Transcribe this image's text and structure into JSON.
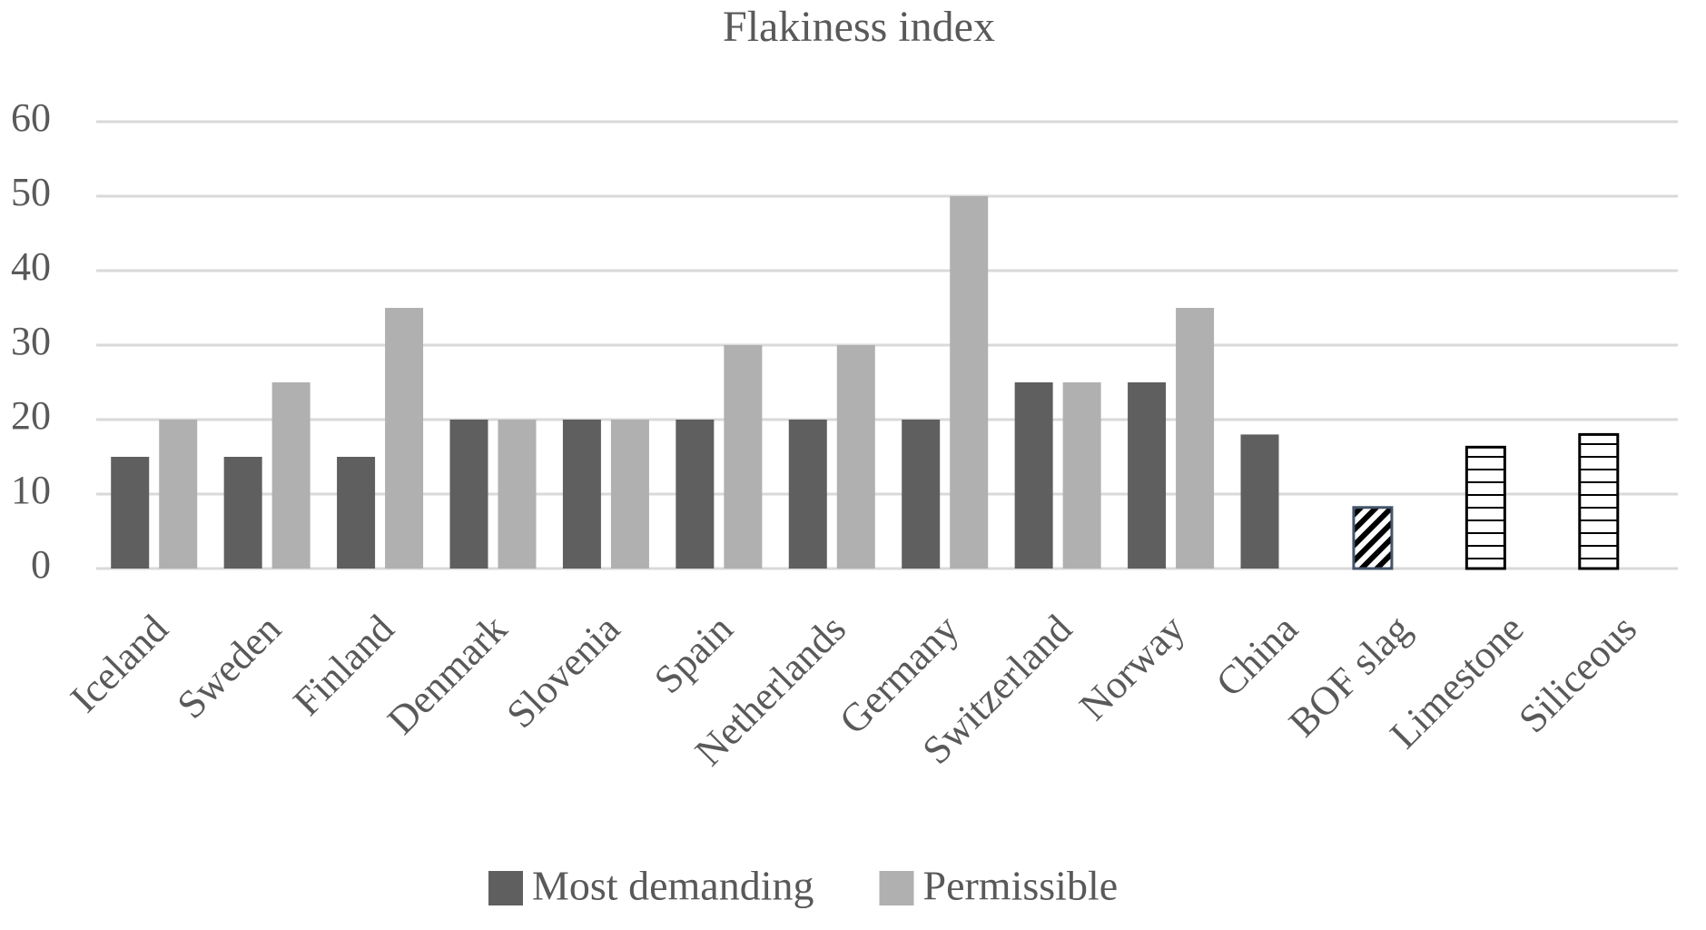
{
  "chart_data": {
    "type": "bar",
    "title": "Flakiness index",
    "categories": [
      "Iceland",
      "Sweden",
      "Finland",
      "Denmark",
      "Slovenia",
      "Spain",
      "Netherlands",
      "Germany",
      "Switzerland",
      "Norway",
      "China",
      "BOF slag",
      "Limestone",
      "Siliceous"
    ],
    "series": [
      {
        "name": "Most demanding",
        "color": "#5f5f5f",
        "values": [
          15,
          15,
          15,
          20,
          20,
          20,
          20,
          20,
          25,
          25,
          18,
          8.2,
          16.3,
          18
        ],
        "point_patterns": [
          null,
          null,
          null,
          null,
          null,
          null,
          null,
          null,
          null,
          null,
          null,
          "diagonal",
          "horizontal",
          "horizontal"
        ]
      },
      {
        "name": "Permissible",
        "color": "#b0b0b0",
        "values": [
          20,
          25,
          35,
          20,
          20,
          30,
          30,
          50,
          25,
          35,
          null,
          null,
          null,
          null
        ]
      }
    ],
    "ylim": [
      0,
      60
    ],
    "yticks": [
      0,
      10,
      20,
      30,
      40,
      50,
      60
    ],
    "grid": true,
    "legend": "bottom"
  }
}
